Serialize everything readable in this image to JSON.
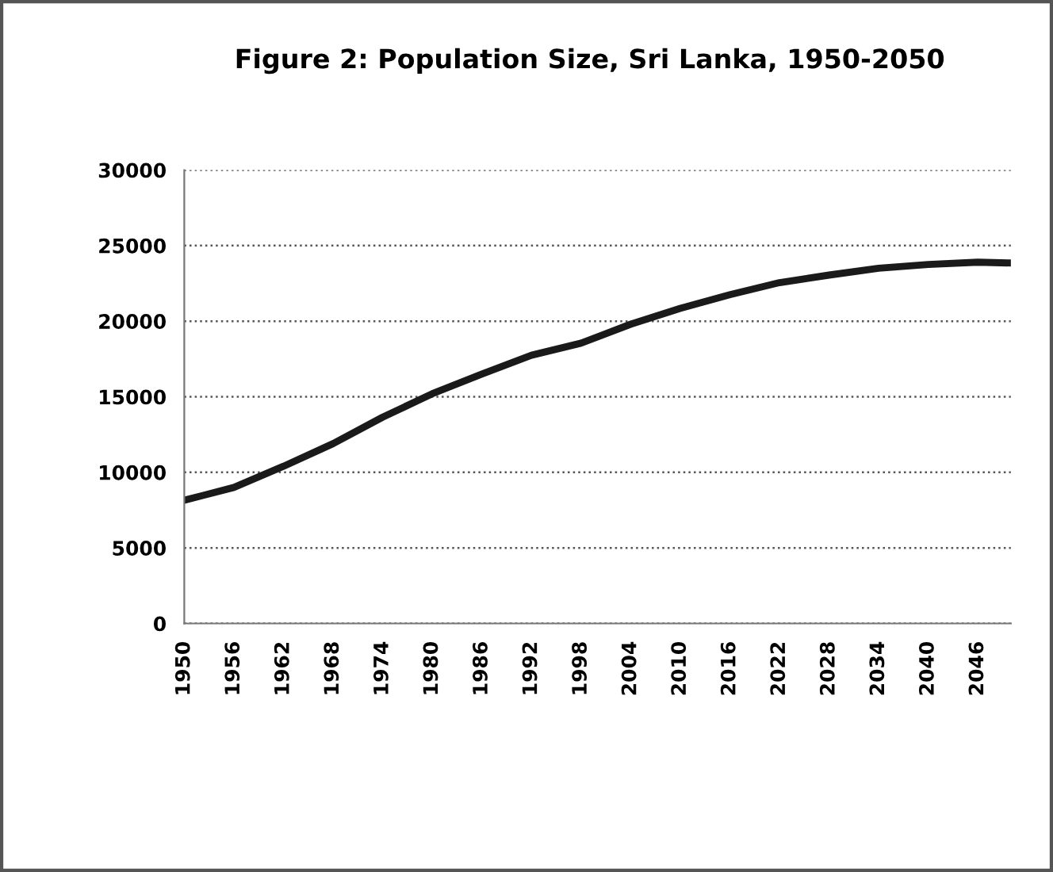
{
  "chart_data": {
    "type": "line",
    "title": "Figure 2: Population Size, Sri Lanka, 1950-2050",
    "x": [
      1950,
      1956,
      1962,
      1968,
      1974,
      1980,
      1986,
      1992,
      1998,
      2004,
      2010,
      2016,
      2022,
      2028,
      2034,
      2040,
      2046,
      2050
    ],
    "series": [
      {
        "color": "#1a1a1a",
        "values": [
          8150,
          9000,
          10400,
          11900,
          13650,
          15200,
          16500,
          17750,
          18550,
          19800,
          20850,
          21750,
          22550,
          23050,
          23500,
          23750,
          23900,
          23850
        ]
      }
    ],
    "xlim": [
      1950,
      2050
    ],
    "xticks": [
      1950,
      1956,
      1962,
      1968,
      1974,
      1980,
      1986,
      1992,
      1998,
      2004,
      2010,
      2016,
      2022,
      2028,
      2034,
      2040,
      2046
    ],
    "ylim": [
      0,
      30000
    ],
    "yticks": [
      0,
      5000,
      10000,
      15000,
      20000,
      25000,
      30000
    ],
    "grid": "y",
    "legend": false,
    "marker": "none",
    "line_style": "solid"
  }
}
